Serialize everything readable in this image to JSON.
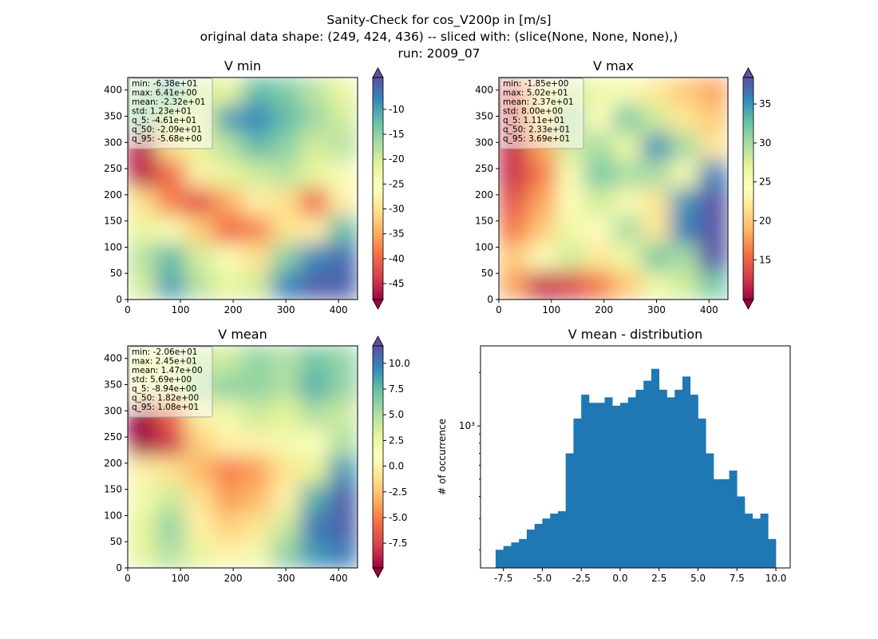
{
  "suptitle": [
    "Sanity-Check for cos_V200p in [m/s]",
    "original data shape: (249, 424, 436) -- sliced with: (slice(None, None, None),)",
    "run: 2009_07"
  ],
  "chart_data": [
    {
      "type": "heatmap",
      "title": "V min",
      "xlim": [
        0,
        436
      ],
      "ylim": [
        0,
        424
      ],
      "xticks": [
        0,
        100,
        200,
        300,
        400
      ],
      "yticks": [
        0,
        50,
        100,
        150,
        200,
        250,
        300,
        350,
        400
      ],
      "clim": [
        -48.2,
        -3.6
      ],
      "cticks": [
        -10,
        -15,
        -20,
        -25,
        -30,
        -35,
        -40,
        -45
      ],
      "cmap": [
        "#9e0142",
        "#d53e4f",
        "#f46d43",
        "#fdae61",
        "#fee08b",
        "#ffffbf",
        "#e6f598",
        "#abdda4",
        "#66c2a5",
        "#3288bd",
        "#5e4fa2"
      ],
      "stats": [
        "min: -6.38e+01",
        "max: 6.41e+00",
        "mean: -2.32e+01",
        "std: 1.23e+01",
        "q_5: -4.61e+01",
        "q_50: -2.09e+01",
        "q_95: -5.68e+00"
      ],
      "values": [
        [
          -18,
          -13,
          -20,
          -22,
          -12,
          -14,
          -18,
          -22
        ],
        [
          -15,
          -20,
          -22,
          -10,
          -8,
          -12,
          -16,
          -20
        ],
        [
          -46,
          -30,
          -22,
          -18,
          -12,
          -15,
          -20,
          -18
        ],
        [
          -46,
          -40,
          -28,
          -22,
          -20,
          -18,
          -22,
          -25
        ],
        [
          -30,
          -38,
          -42,
          -35,
          -28,
          -30,
          -40,
          -28
        ],
        [
          -22,
          -25,
          -32,
          -40,
          -38,
          -30,
          -28,
          -12
        ],
        [
          -18,
          -12,
          -20,
          -25,
          -30,
          -15,
          -8,
          -6
        ],
        [
          -20,
          -10,
          -18,
          -22,
          -20,
          -8,
          -5,
          -5
        ]
      ]
    },
    {
      "type": "heatmap",
      "title": "V max",
      "xlim": [
        0,
        436
      ],
      "ylim": [
        0,
        424
      ],
      "xticks": [
        0,
        100,
        200,
        300,
        400
      ],
      "yticks": [
        0,
        50,
        100,
        150,
        200,
        250,
        300,
        350,
        400
      ],
      "clim": [
        9.9,
        38.4
      ],
      "cticks": [
        15,
        20,
        25,
        30,
        35
      ],
      "cmap": [
        "#9e0142",
        "#d53e4f",
        "#f46d43",
        "#fdae61",
        "#fee08b",
        "#ffffbf",
        "#e6f598",
        "#abdda4",
        "#66c2a5",
        "#3288bd",
        "#5e4fa2"
      ],
      "stats": [
        "min: -1.85e+00",
        "max: 5.02e+01",
        "mean: 2.37e+01",
        "std: 8.00e+00",
        "q_5: 1.11e+01",
        "q_50: 2.33e+01",
        "q_95: 3.69e+01"
      ],
      "values": [
        [
          14,
          22,
          28,
          26,
          25,
          22,
          20,
          18
        ],
        [
          13,
          22,
          30,
          24,
          32,
          28,
          22,
          20
        ],
        [
          12,
          18,
          28,
          30,
          26,
          35,
          30,
          22
        ],
        [
          12,
          16,
          25,
          32,
          30,
          30,
          25,
          36
        ],
        [
          14,
          18,
          24,
          28,
          25,
          22,
          35,
          38
        ],
        [
          16,
          20,
          26,
          24,
          30,
          22,
          36,
          38
        ],
        [
          20,
          24,
          28,
          22,
          26,
          32,
          30,
          38
        ],
        [
          18,
          12,
          13,
          16,
          20,
          26,
          28,
          32
        ]
      ]
    },
    {
      "type": "heatmap",
      "title": "V mean",
      "xlim": [
        0,
        436
      ],
      "ylim": [
        0,
        424
      ],
      "xticks": [
        0,
        100,
        200,
        300,
        400
      ],
      "yticks": [
        0,
        50,
        100,
        150,
        200,
        250,
        300,
        350,
        400
      ],
      "clim": [
        -9.9,
        11.7
      ],
      "cticks": [
        {
          "value": 10,
          "label": "10.0"
        },
        7.5,
        {
          "value": 5,
          "label": "5.0"
        },
        2.5,
        {
          "value": 0,
          "label": "0.0"
        },
        -2.5,
        {
          "value": -5,
          "label": "-5.0"
        },
        -7.5
      ],
      "cmap": [
        "#9e0142",
        "#d53e4f",
        "#f46d43",
        "#fdae61",
        "#fee08b",
        "#ffffbf",
        "#e6f598",
        "#abdda4",
        "#66c2a5",
        "#3288bd",
        "#5e4fa2"
      ],
      "stats": [
        "min: -2.06e+01",
        "max: 2.45e+01",
        "mean: 1.47e+00",
        "std: 5.69e+00",
        "q_5: -8.94e+00",
        "q_50: 1.82e+00",
        "q_95: 1.08e+01"
      ],
      "values": [
        [
          3,
          2,
          4,
          4,
          6,
          5,
          7,
          6
        ],
        [
          0,
          2,
          5,
          6,
          6,
          5,
          8,
          6
        ],
        [
          -10,
          -6,
          0,
          2,
          4,
          3,
          5,
          4
        ],
        [
          -10,
          -8,
          -2,
          0,
          0,
          2,
          1,
          5
        ],
        [
          0,
          -1,
          -3,
          -5,
          -4,
          -1,
          3,
          9
        ],
        [
          2,
          4,
          -1,
          -4,
          -3,
          0,
          8,
          11
        ],
        [
          3,
          6,
          0,
          -2,
          -1,
          4,
          10,
          11
        ],
        [
          3,
          5,
          3,
          0,
          2,
          6,
          9,
          10
        ]
      ]
    },
    {
      "type": "histogram",
      "title": "V mean - distribution",
      "ylabel": "# of occurrence",
      "color": "#1f77b4",
      "log_y": true,
      "bins": [
        -8,
        -7.5,
        -7,
        -6.5,
        -6,
        -5.5,
        -5,
        -4.5,
        -4,
        -3.5,
        -3,
        -2.5,
        -2,
        -1.5,
        -1,
        -0.5,
        0,
        0.5,
        1,
        1.5,
        2,
        2.5,
        3,
        3.5,
        4,
        4.5,
        5,
        5.5,
        6,
        6.5,
        7,
        7.5,
        8,
        8.5,
        9,
        9.5,
        10
      ],
      "values": [
        200,
        210,
        220,
        230,
        260,
        280,
        300,
        320,
        330,
        700,
        1100,
        1500,
        1350,
        1350,
        1450,
        1300,
        1350,
        1450,
        1600,
        1800,
        2100,
        1600,
        1450,
        1600,
        1900,
        1500,
        1100,
        700,
        500,
        500,
        560,
        400,
        320,
        300,
        320,
        230
      ],
      "xlim": [
        -8.97,
        10.92
      ],
      "ylim": [
        158,
        2830
      ],
      "xticks": [
        -7.5,
        {
          "value": -5,
          "label": "-5.0"
        },
        -2.5,
        {
          "value": 0,
          "label": "0.0"
        },
        2.5,
        {
          "value": 5,
          "label": "5.0"
        },
        7.5,
        {
          "value": 10,
          "label": "10.0"
        }
      ],
      "yticks": [
        {
          "value": 1000,
          "label": "10³"
        }
      ],
      "yminorticks": [
        200,
        300,
        400,
        500,
        600,
        700,
        800,
        900,
        2000
      ]
    }
  ]
}
